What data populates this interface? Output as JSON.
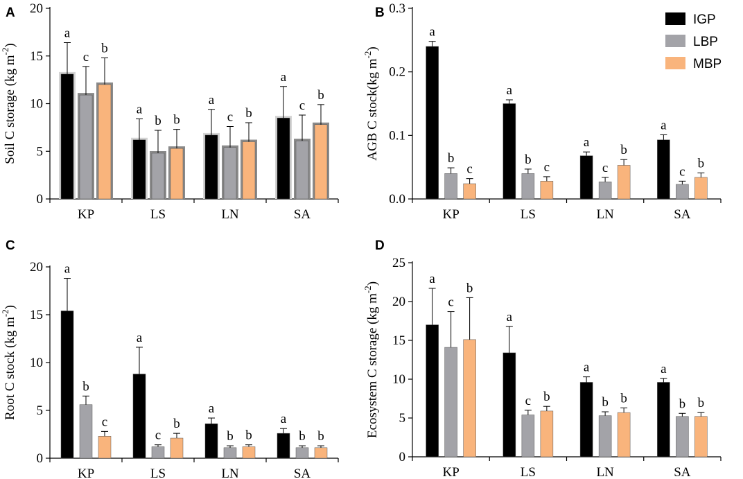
{
  "legend": {
    "items": [
      {
        "label": "IGP",
        "color": "#000000"
      },
      {
        "label": "LBP",
        "color": "#a3a3a8"
      },
      {
        "label": "MBP",
        "color": "#f9b47c"
      }
    ]
  },
  "chart_data": [
    {
      "type": "bar",
      "panel_label": "A",
      "title": "",
      "xlabel": "",
      "ylabel": "Soil C storage (kg m",
      "ylabel_sup": "-2",
      "ylabel_close": ")",
      "categories": [
        "KP",
        "LS",
        "LN",
        "SA"
      ],
      "ylim": [
        0,
        20
      ],
      "yticks": [
        0,
        5,
        10,
        15,
        20
      ],
      "ytick_labels": [
        "0",
        "5",
        "10",
        "15",
        "20"
      ],
      "series": [
        {
          "name": "IGP",
          "values": [
            13.1,
            6.2,
            6.7,
            8.5
          ],
          "errors": [
            3.3,
            2.2,
            2.7,
            3.3
          ],
          "letters": [
            "a",
            "a",
            "a",
            "a"
          ]
        },
        {
          "name": "LBP",
          "values": [
            10.9,
            4.8,
            5.4,
            6.1
          ],
          "errors": [
            3.0,
            2.4,
            2.2,
            2.7
          ],
          "letters": [
            "c",
            "b",
            "c",
            "c"
          ]
        },
        {
          "name": "MBP",
          "values": [
            12.0,
            5.3,
            6.0,
            7.8
          ],
          "errors": [
            2.8,
            2.0,
            2.0,
            2.1
          ],
          "letters": [
            "b",
            "b",
            "b",
            "b"
          ]
        }
      ]
    },
    {
      "type": "bar",
      "panel_label": "B",
      "title": "",
      "xlabel": "",
      "ylabel": "AGB C stock(kg m",
      "ylabel_sup": "-2",
      "ylabel_close": ")",
      "categories": [
        "KP",
        "LS",
        "LN",
        "SA"
      ],
      "ylim": [
        0,
        0.3
      ],
      "yticks": [
        0,
        0.1,
        0.2,
        0.3
      ],
      "ytick_labels": [
        "0.0",
        "0.1",
        "0.2",
        "0.3"
      ],
      "series": [
        {
          "name": "IGP",
          "values": [
            0.24,
            0.15,
            0.068,
            0.093
          ],
          "errors": [
            0.008,
            0.006,
            0.006,
            0.008
          ],
          "letters": [
            "a",
            "a",
            "a",
            "a"
          ]
        },
        {
          "name": "LBP",
          "values": [
            0.04,
            0.04,
            0.027,
            0.023
          ],
          "errors": [
            0.009,
            0.007,
            0.007,
            0.005
          ],
          "letters": [
            "b",
            "b",
            "c",
            "c"
          ]
        },
        {
          "name": "MBP",
          "values": [
            0.024,
            0.028,
            0.053,
            0.034
          ],
          "errors": [
            0.008,
            0.007,
            0.009,
            0.007
          ],
          "letters": [
            "c",
            "c",
            "b",
            "b"
          ]
        }
      ]
    },
    {
      "type": "bar",
      "panel_label": "C",
      "title": "",
      "xlabel": "",
      "ylabel": "Root C stock (kg m",
      "ylabel_sup": "-2",
      "ylabel_close": ")",
      "categories": [
        "KP",
        "LS",
        "LN",
        "SA"
      ],
      "ylim": [
        0,
        20
      ],
      "yticks": [
        0,
        5,
        10,
        15,
        20
      ],
      "ytick_labels": [
        "0",
        "5",
        "10",
        "15",
        "20"
      ],
      "series": [
        {
          "name": "IGP",
          "values": [
            15.4,
            8.8,
            3.6,
            2.6
          ],
          "errors": [
            3.4,
            2.8,
            0.6,
            0.5
          ],
          "letters": [
            "a",
            "a",
            "a",
            "a"
          ]
        },
        {
          "name": "LBP",
          "values": [
            5.6,
            1.2,
            1.1,
            1.1
          ],
          "errors": [
            0.9,
            0.2,
            0.2,
            0.2
          ],
          "letters": [
            "b",
            "c",
            "b",
            "b"
          ]
        },
        {
          "name": "MBP",
          "values": [
            2.3,
            2.1,
            1.2,
            1.1
          ],
          "errors": [
            0.5,
            0.5,
            0.2,
            0.2
          ],
          "letters": [
            "c",
            "b",
            "b",
            "b"
          ]
        }
      ]
    },
    {
      "type": "bar",
      "panel_label": "D",
      "title": "",
      "xlabel": "",
      "ylabel": "Ecosystem C storage (kg m",
      "ylabel_sup": "-2",
      "ylabel_close": ")",
      "categories": [
        "KP",
        "LS",
        "LN",
        "SA"
      ],
      "ylim": [
        0,
        25
      ],
      "yticks": [
        0,
        5,
        10,
        15,
        20,
        25
      ],
      "ytick_labels": [
        "0",
        "5",
        "10",
        "15",
        "20",
        "25"
      ],
      "series": [
        {
          "name": "IGP",
          "values": [
            17.0,
            13.4,
            9.6,
            9.6
          ],
          "errors": [
            4.7,
            3.4,
            0.7,
            0.5
          ],
          "letters": [
            "a",
            "a",
            "a",
            "a"
          ]
        },
        {
          "name": "LBP",
          "values": [
            14.1,
            5.4,
            5.3,
            5.2
          ],
          "errors": [
            4.6,
            0.6,
            0.5,
            0.4
          ],
          "letters": [
            "c",
            "c",
            "b",
            "b"
          ]
        },
        {
          "name": "MBP",
          "values": [
            15.1,
            5.9,
            5.7,
            5.2
          ],
          "errors": [
            5.4,
            0.6,
            0.6,
            0.5
          ],
          "letters": [
            "b",
            "b",
            "b",
            "b"
          ]
        }
      ]
    }
  ]
}
